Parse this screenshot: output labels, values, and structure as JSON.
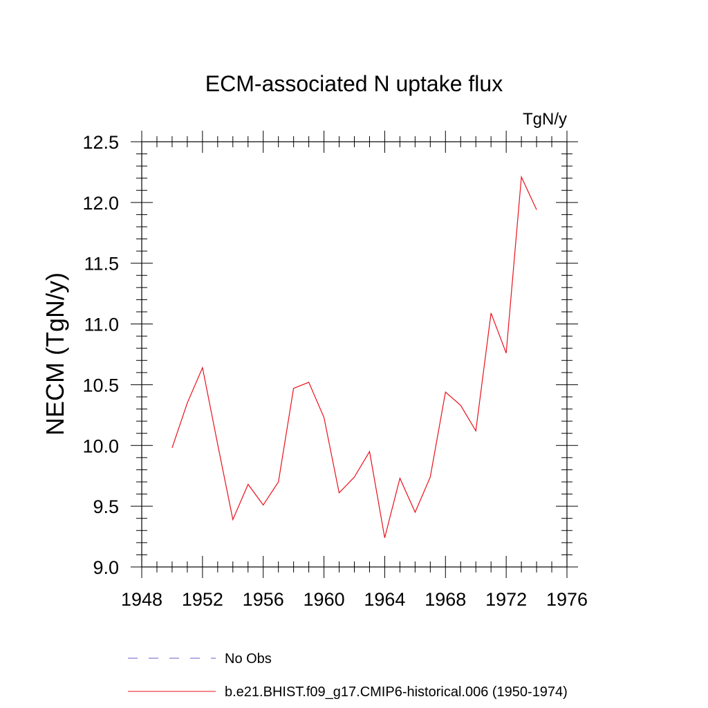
{
  "chart_data": {
    "type": "line",
    "title": "ECM-associated N uptake flux",
    "units": "TgN/y",
    "ylabel": "NECM  (TgN/y)",
    "xlabel": "",
    "xlim": [
      1948,
      1976
    ],
    "ylim": [
      9.0,
      12.5
    ],
    "x_ticks": [
      1948,
      1952,
      1956,
      1960,
      1964,
      1968,
      1972,
      1976
    ],
    "x_tick_labels": [
      "1948",
      "1952",
      "1956",
      "1960",
      "1964",
      "1968",
      "1972",
      "1976"
    ],
    "y_ticks": [
      9.0,
      9.5,
      10.0,
      10.5,
      11.0,
      11.5,
      12.0,
      12.5
    ],
    "y_tick_labels": [
      "9.0",
      "9.5",
      "10.0",
      "10.5",
      "11.0",
      "11.5",
      "12.0",
      "12.5"
    ],
    "grid": false,
    "legend_position": "bottom",
    "series": [
      {
        "name": "No Obs",
        "color": "#6a5acd",
        "style": "dashed",
        "x": [],
        "y": []
      },
      {
        "name": "b.e21.BHIST.f09_g17.CMIP6-historical.006 (1950-1974)",
        "color": "#e8101a",
        "style": "solid",
        "x": [
          1950,
          1951,
          1952,
          1953,
          1954,
          1955,
          1956,
          1957,
          1958,
          1959,
          1960,
          1961,
          1962,
          1963,
          1964,
          1965,
          1966,
          1967,
          1968,
          1969,
          1970,
          1971,
          1972,
          1973,
          1974
        ],
        "y": [
          9.98,
          10.35,
          10.64,
          10.01,
          9.39,
          9.68,
          9.51,
          9.7,
          10.47,
          10.52,
          10.23,
          9.61,
          9.74,
          9.95,
          9.24,
          9.73,
          9.45,
          9.74,
          10.44,
          10.33,
          10.12,
          11.09,
          10.76,
          12.21,
          11.94
        ]
      }
    ]
  }
}
